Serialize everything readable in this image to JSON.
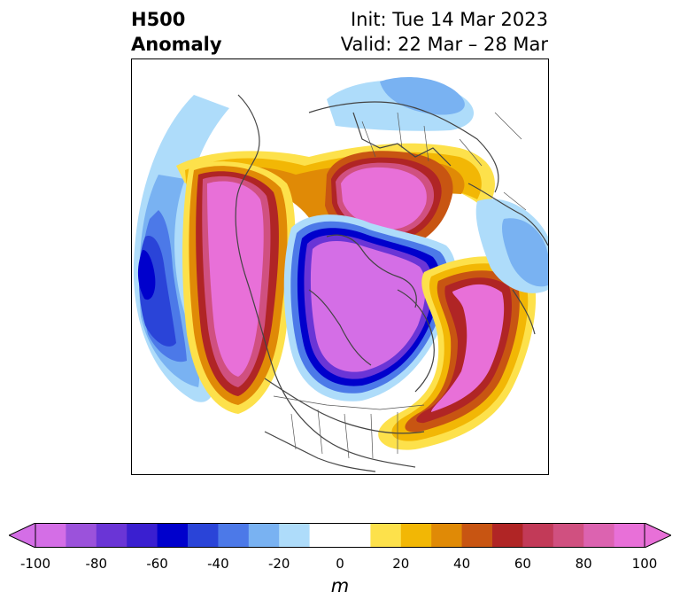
{
  "title": {
    "left_line1": "H500",
    "left_line2": "Anomaly",
    "right_line1": "Init: Tue 14 Mar 2023",
    "right_line2": "Valid: 22 Mar – 28 Mar"
  },
  "colorbar": {
    "units": "m",
    "ticks": [
      "-100",
      "-80",
      "-60",
      "-40",
      "-20",
      "0",
      "20",
      "40",
      "60",
      "80",
      "100"
    ],
    "colors": [
      "#d46ee6",
      "#9b52db",
      "#6a35d6",
      "#3a1fd0",
      "#0000cc",
      "#2a44d8",
      "#4c79e8",
      "#79b2f2",
      "#aedcfa",
      "#ffffff",
      "#ffffff",
      "#fde14b",
      "#f2b705",
      "#e08a06",
      "#c85512",
      "#b02525",
      "#c23a58",
      "#d05080",
      "#dc63b0",
      "#e870d8"
    ],
    "extend": "both"
  },
  "map": {
    "projection": "north-polar-stereographic",
    "variable": "500 hPa geopotential height anomaly",
    "features": [
      "coastlines",
      "country borders",
      "state borders"
    ]
  }
}
